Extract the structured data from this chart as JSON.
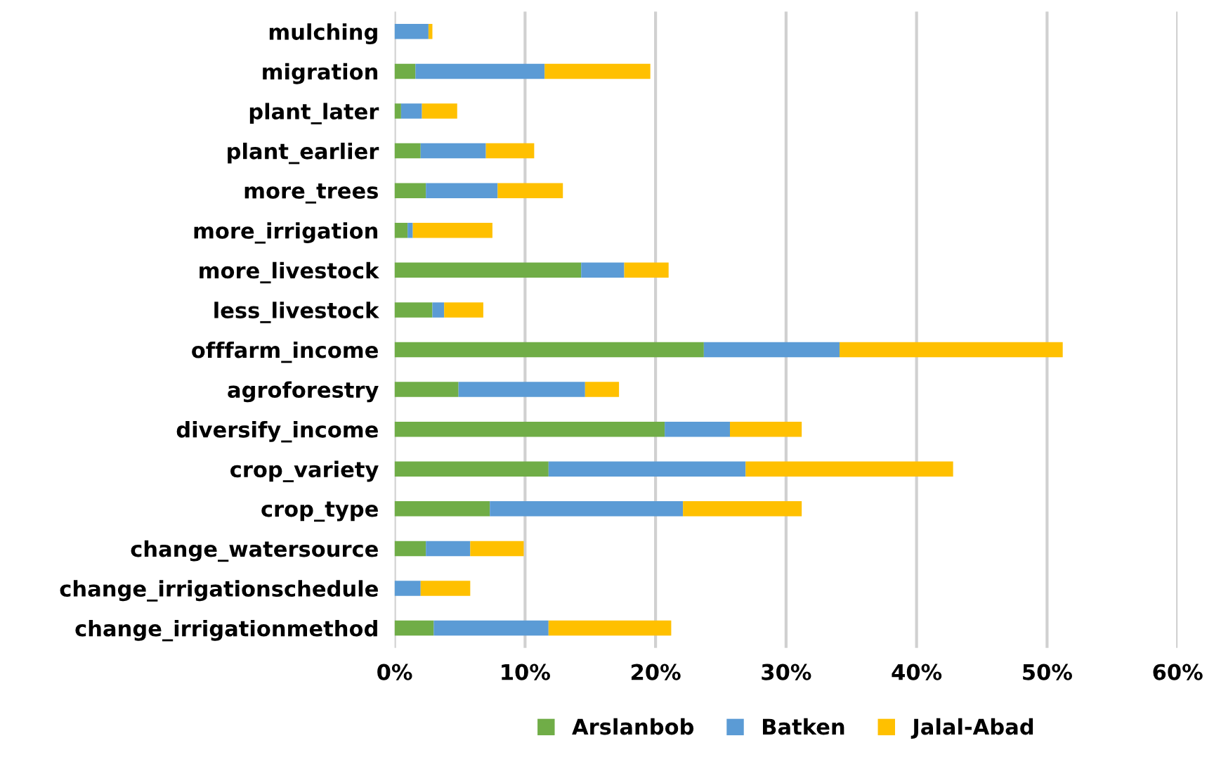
{
  "chart_data": {
    "type": "bar",
    "orientation": "horizontal",
    "stacked": true,
    "categories": [
      "mulching",
      "migration",
      "plant_later",
      "plant_earlier",
      "more_trees",
      "more_irrigation",
      "more_livestock",
      "less_livestock",
      "offfarm_income",
      "agroforestry",
      "diversify_income",
      "crop_variety",
      "crop_type",
      "change_watersource",
      "change_irrigationschedule",
      "change_irrigationmethod"
    ],
    "series": [
      {
        "name": "Arslanbob",
        "color": "#70ad47",
        "values": [
          0,
          1.6,
          0.5,
          2.0,
          2.4,
          1.0,
          14.3,
          2.9,
          23.7,
          4.9,
          20.7,
          11.8,
          7.3,
          2.4,
          0,
          3.0
        ]
      },
      {
        "name": "Batken",
        "color": "#5b9bd5",
        "values": [
          2.6,
          9.9,
          1.6,
          5.0,
          5.5,
          0.4,
          3.3,
          0.9,
          10.4,
          9.7,
          5.0,
          15.1,
          14.8,
          3.4,
          2.0,
          8.8
        ]
      },
      {
        "name": "Jalal-Abad",
        "color": "#ffc000",
        "values": [
          0.3,
          8.1,
          2.7,
          3.7,
          5.0,
          6.1,
          3.4,
          3.0,
          17.1,
          2.6,
          5.5,
          15.9,
          9.1,
          4.1,
          3.8,
          9.4
        ]
      }
    ],
    "xlim": [
      0,
      60
    ],
    "xticks": [
      {
        "value": 0,
        "label": "0%"
      },
      {
        "value": 10,
        "label": "10%"
      },
      {
        "value": 20,
        "label": "20%"
      },
      {
        "value": 30,
        "label": "30%"
      },
      {
        "value": 40,
        "label": "40%"
      },
      {
        "value": 50,
        "label": "50%"
      },
      {
        "value": 60,
        "label": "60%"
      }
    ],
    "grid": "x",
    "legend": "bottom"
  }
}
